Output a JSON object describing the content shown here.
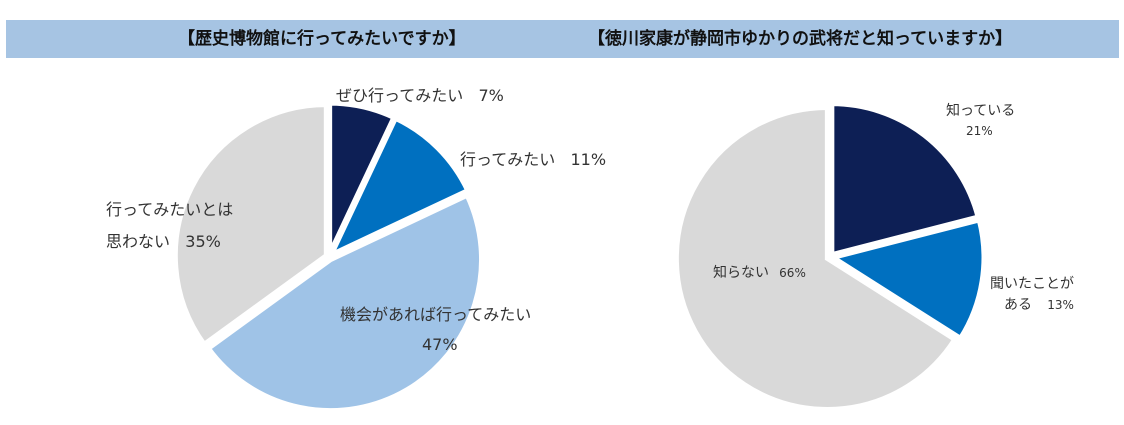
{
  "chart_data": [
    {
      "type": "pie",
      "title": "【歴史博物館に行ってみたいですか】",
      "slices": [
        {
          "label": "ぜひ行ってみたい",
          "value": 7,
          "value_label": "7%",
          "color": "#0d1f55"
        },
        {
          "label": "行ってみたい",
          "value": 11,
          "value_label": "11%",
          "color": "#0070c0"
        },
        {
          "label": "機会があれば行ってみたい",
          "value": 47,
          "value_label": "47%",
          "color": "#9fc3e7"
        },
        {
          "label_lines": [
            "行ってみたいとは",
            "思わない"
          ],
          "value": 35,
          "value_label": "35%",
          "color": "#d9d9d9"
        }
      ]
    },
    {
      "type": "pie",
      "title": "【徳川家康が静岡市ゆかりの武将だと知っていますか】",
      "slices": [
        {
          "label": "知っている",
          "value": 21,
          "value_label": "21%",
          "color": "#0d1f55"
        },
        {
          "label_lines": [
            "聞いたことが",
            "ある"
          ],
          "value": 13,
          "value_label": "13%",
          "color": "#0070c0"
        },
        {
          "label": "知らない",
          "value": 66,
          "value_label": "66%",
          "color": "#d9d9d9"
        }
      ]
    }
  ]
}
